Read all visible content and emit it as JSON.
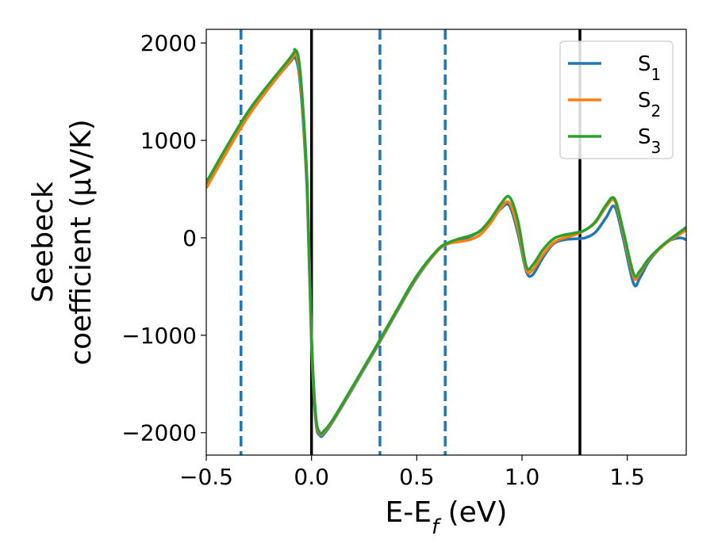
{
  "chart_data": {
    "type": "line",
    "xlabel": "E-E_f (eV)",
    "ylabel_line1": "Seebeck",
    "ylabel_line2": "coefficient  (μV/K)",
    "xlim": [
      -0.5,
      1.78
    ],
    "ylim": [
      -2230,
      2140
    ],
    "x_ticks": [
      -0.5,
      0.0,
      0.5,
      1.0,
      1.5
    ],
    "x_tick_labels": [
      "−0.5",
      "0.0",
      "0.5",
      "1.0",
      "1.5"
    ],
    "y_ticks": [
      -2000,
      -1000,
      0,
      1000,
      2000
    ],
    "y_tick_labels": [
      "−2000",
      "−1000",
      "0",
      "1000",
      "2000"
    ],
    "grid": false,
    "legend_position": "top-right",
    "vlines": [
      {
        "x": -0.335,
        "style": "dashed",
        "color": "#1f77b4"
      },
      {
        "x": 0.0,
        "style": "solid",
        "color": "#000000"
      },
      {
        "x": 0.325,
        "style": "dashed",
        "color": "#1f77b4"
      },
      {
        "x": 0.635,
        "style": "dashed",
        "color": "#1f77b4"
      },
      {
        "x": 1.275,
        "style": "solid",
        "color": "#000000"
      }
    ],
    "series": [
      {
        "name": "S",
        "subscript": "1",
        "color": "#1f77b4",
        "x": [
          -0.5,
          -0.3,
          -0.1,
          -0.08,
          -0.06,
          -0.04,
          -0.02,
          0.0,
          0.02,
          0.04,
          0.06,
          0.1,
          0.2,
          0.3,
          0.4,
          0.5,
          0.6,
          0.65,
          0.7,
          0.75,
          0.8,
          0.85,
          0.9,
          0.94,
          0.98,
          1.02,
          1.05,
          1.1,
          1.15,
          1.2,
          1.25,
          1.3,
          1.35,
          1.4,
          1.44,
          1.48,
          1.53,
          1.56,
          1.6,
          1.65,
          1.7,
          1.75,
          1.78
        ],
        "y": [
          530,
          1270,
          1810,
          1860,
          1700,
          1200,
          400,
          -1100,
          -1880,
          -2030,
          -2010,
          -1890,
          -1530,
          -1160,
          -780,
          -410,
          -130,
          -60,
          -30,
          10,
          70,
          180,
          300,
          330,
          50,
          -340,
          -380,
          -200,
          -60,
          -20,
          -10,
          0,
          60,
          210,
          320,
          0,
          -470,
          -410,
          -250,
          -120,
          -30,
          0,
          -20
        ]
      },
      {
        "name": "S",
        "subscript": "2",
        "color": "#ff7f0e",
        "x": [
          -0.5,
          -0.3,
          -0.1,
          -0.08,
          -0.06,
          -0.04,
          -0.02,
          0.0,
          0.02,
          0.04,
          0.06,
          0.1,
          0.2,
          0.3,
          0.4,
          0.5,
          0.6,
          0.65,
          0.7,
          0.75,
          0.8,
          0.85,
          0.9,
          0.94,
          0.98,
          1.02,
          1.05,
          1.1,
          1.15,
          1.2,
          1.25,
          1.3,
          1.35,
          1.4,
          1.44,
          1.48,
          1.53,
          1.56,
          1.6,
          1.65,
          1.7,
          1.75,
          1.78
        ],
        "y": [
          510,
          1250,
          1820,
          1900,
          1760,
          1260,
          460,
          -1050,
          -1850,
          -2010,
          -1990,
          -1880,
          -1520,
          -1150,
          -770,
          -400,
          -130,
          -60,
          -40,
          -20,
          30,
          150,
          310,
          360,
          100,
          -320,
          -330,
          -170,
          -50,
          0,
          30,
          80,
          160,
          320,
          380,
          50,
          -400,
          -360,
          -230,
          -120,
          -30,
          40,
          80
        ]
      },
      {
        "name": "S",
        "subscript": "3",
        "color": "#2ca02c",
        "x": [
          -0.5,
          -0.3,
          -0.1,
          -0.08,
          -0.06,
          -0.04,
          -0.02,
          0.0,
          0.02,
          0.04,
          0.06,
          0.1,
          0.2,
          0.3,
          0.4,
          0.5,
          0.6,
          0.65,
          0.7,
          0.75,
          0.8,
          0.85,
          0.9,
          0.94,
          0.98,
          1.02,
          1.05,
          1.1,
          1.15,
          1.2,
          1.25,
          1.3,
          1.35,
          1.4,
          1.44,
          1.48,
          1.53,
          1.56,
          1.6,
          1.65,
          1.7,
          1.75,
          1.78
        ],
        "y": [
          570,
          1300,
          1850,
          1930,
          1820,
          1320,
          520,
          -1000,
          -1820,
          -2000,
          -1980,
          -1870,
          -1510,
          -1140,
          -760,
          -390,
          -120,
          -50,
          -10,
          20,
          70,
          190,
          350,
          420,
          180,
          -290,
          -280,
          -120,
          -10,
          30,
          50,
          80,
          170,
          340,
          400,
          80,
          -370,
          -340,
          -220,
          -110,
          -20,
          60,
          110
        ]
      }
    ]
  }
}
